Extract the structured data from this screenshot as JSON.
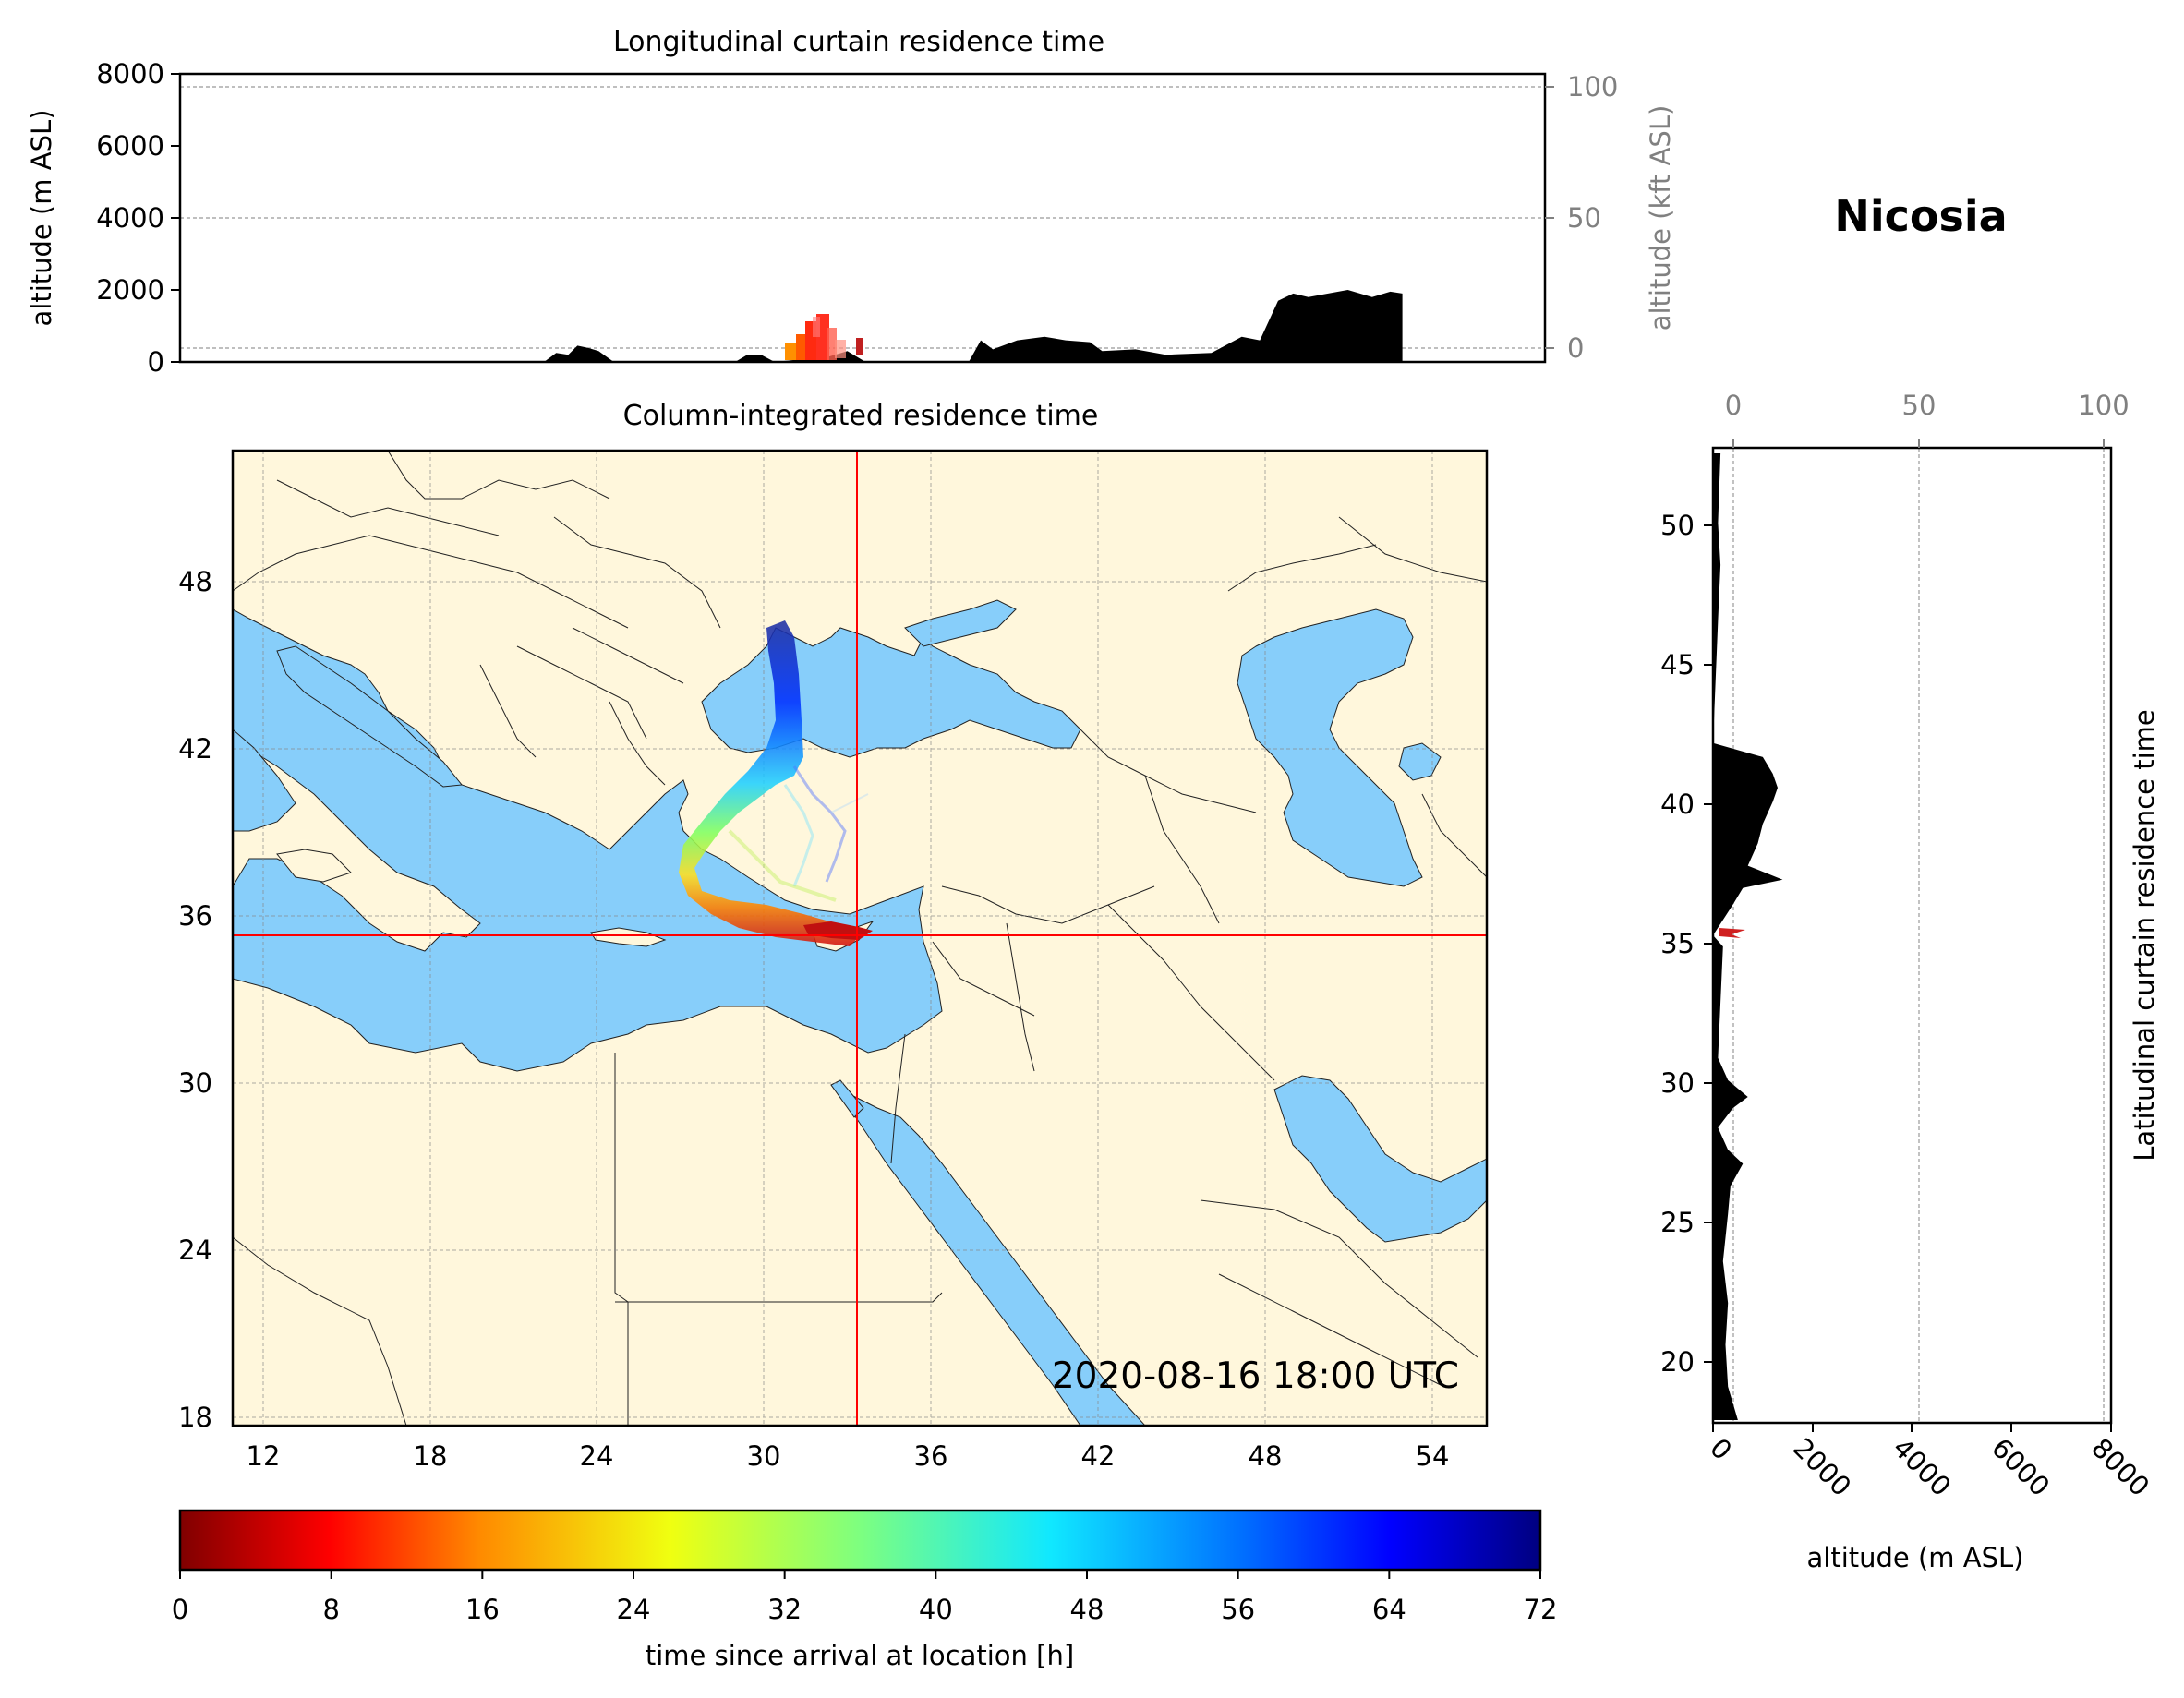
{
  "station_title": "Nicosia",
  "timestamp": "2020-08-16 18:00 UTC",
  "colors": {
    "sea": "#87cefa",
    "land": "#fff7dc",
    "crosshair": "#ff0000",
    "terrain": "#000000"
  },
  "chart_data": [
    {
      "type": "area",
      "title": "Longitudinal curtain residence time",
      "ylabel": "altitude (m ASL)",
      "ylabel_right": "altitude (kft ASL)",
      "ylim": [
        0,
        8000
      ],
      "yticks": [
        "0",
        "2000",
        "4000",
        "6000",
        "8000"
      ],
      "yticks_right": [
        "0",
        "50",
        "100"
      ],
      "x_lon_range": [
        11,
        56
      ],
      "terrain_profile": [
        [
          23,
          0
        ],
        [
          23.4,
          250
        ],
        [
          23.8,
          200
        ],
        [
          24.1,
          450
        ],
        [
          24.5,
          380
        ],
        [
          24.8,
          300
        ],
        [
          25.3,
          0
        ],
        [
          29.3,
          0
        ],
        [
          29.7,
          200
        ],
        [
          30.2,
          180
        ],
        [
          30.6,
          0
        ],
        [
          32.4,
          150
        ],
        [
          33,
          300
        ],
        [
          33.6,
          0
        ],
        [
          37,
          0
        ],
        [
          37.4,
          600
        ],
        [
          37.8,
          350
        ],
        [
          38.6,
          600
        ],
        [
          39.5,
          700
        ],
        [
          40.2,
          600
        ],
        [
          41,
          550
        ],
        [
          41.4,
          300
        ],
        [
          42.5,
          350
        ],
        [
          43.5,
          200
        ],
        [
          45,
          250
        ],
        [
          46,
          700
        ],
        [
          46.6,
          600
        ],
        [
          47.2,
          1700
        ],
        [
          47.7,
          1900
        ],
        [
          48.2,
          1800
        ],
        [
          49.5,
          2000
        ],
        [
          50.3,
          1800
        ],
        [
          50.9,
          1950
        ],
        [
          51.3,
          1900
        ],
        [
          51.3,
          0
        ]
      ],
      "grid": true
    },
    {
      "type": "heatmap",
      "title": "Column-integrated residence time",
      "xlim": [
        11,
        56
      ],
      "ylim": [
        18,
        53
      ],
      "xticks": [
        "12",
        "18",
        "24",
        "30",
        "36",
        "42",
        "48",
        "54"
      ],
      "yticks": [
        "18",
        "24",
        "30",
        "36",
        "42",
        "48"
      ],
      "release_lon": 33.4,
      "release_lat": 35.2,
      "grid": true
    },
    {
      "type": "area",
      "title": "Latitudinal curtain residence time",
      "xlabel": "altitude (m ASL)",
      "xlim": [
        0,
        8000
      ],
      "xticks": [
        "0",
        "2000",
        "4000",
        "6000",
        "8000"
      ],
      "xticks_top": [
        "0",
        "50",
        "100"
      ],
      "ylim": [
        17.7,
        52.7
      ],
      "yticks": [
        "20",
        "25",
        "30",
        "35",
        "40",
        "45",
        "50"
      ],
      "terrain_profile": [
        [
          17.8,
          500
        ],
        [
          19,
          300
        ],
        [
          20.5,
          250
        ],
        [
          22,
          300
        ],
        [
          23.5,
          200
        ],
        [
          25.2,
          300
        ],
        [
          26.2,
          350
        ],
        [
          27,
          600
        ],
        [
          27.5,
          300
        ],
        [
          28.3,
          100
        ],
        [
          29,
          400
        ],
        [
          29.4,
          700
        ],
        [
          30,
          300
        ],
        [
          30.8,
          100
        ],
        [
          34.8,
          200
        ],
        [
          35.2,
          0
        ],
        [
          36.3,
          400
        ],
        [
          36.9,
          600
        ],
        [
          37.2,
          1400
        ],
        [
          37.7,
          700
        ],
        [
          38.5,
          900
        ],
        [
          39.2,
          1000
        ],
        [
          40,
          1200
        ],
        [
          40.5,
          1300
        ],
        [
          41,
          1200
        ],
        [
          41.6,
          1000
        ],
        [
          42.1,
          0
        ],
        [
          46.5,
          100
        ],
        [
          48.5,
          150
        ],
        [
          50,
          100
        ],
        [
          52.5,
          150
        ]
      ],
      "grid": true
    },
    {
      "type": "colorbar",
      "label": "time since arrival at location [h]",
      "range": [
        0,
        72
      ],
      "ticks": [
        "0",
        "8",
        "16",
        "24",
        "32",
        "40",
        "48",
        "56",
        "64",
        "72"
      ],
      "colormap": "jet_r"
    }
  ]
}
